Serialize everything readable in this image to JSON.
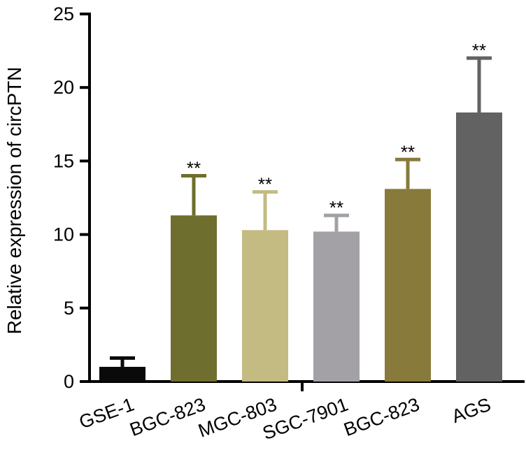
{
  "chart_data": {
    "type": "bar",
    "title": "",
    "xlabel": "",
    "ylabel": "Relative expression of circPTN",
    "ylim": [
      0,
      25
    ],
    "yticks": [
      "0",
      "5",
      "10",
      "15",
      "20",
      "25"
    ],
    "grid": false,
    "categories": [
      "GSE-1",
      "BGC-823",
      "MGC-803",
      "SGC-7901",
      "BGC-823",
      "AGS"
    ],
    "values": [
      1.0,
      11.3,
      10.3,
      10.2,
      13.1,
      18.3
    ],
    "errors": [
      0.6,
      2.7,
      2.6,
      1.1,
      2.0,
      3.7
    ],
    "significance": [
      "",
      "**",
      "**",
      "**",
      "**",
      "**"
    ],
    "colors": [
      "#0a0a0a",
      "#6e6e2e",
      "#c4bb82",
      "#a3a1a6",
      "#877a3a",
      "#626262"
    ]
  }
}
